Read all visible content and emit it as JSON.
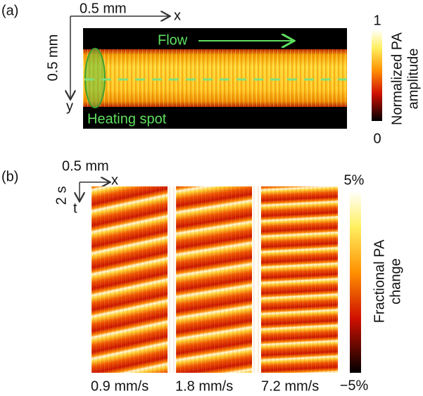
{
  "panel_a": {
    "label": "(a)",
    "scale_x": "0.5 mm",
    "axis_x": "x",
    "scale_y": "0.5 mm",
    "axis_y": "y",
    "flow": "Flow",
    "heating_spot": "Heating spot",
    "colorbar_max": "1",
    "colorbar_min": "0",
    "colorbar_label_line1": "Normalized PA",
    "colorbar_label_line2": "amplitude"
  },
  "panel_b": {
    "label": "(b)",
    "scale_x": "0.5 mm",
    "axis_x": "x",
    "scale_t": "2 s",
    "axis_t": "t",
    "colorbar_max": "5%",
    "colorbar_min": "−5%",
    "colorbar_label_line1": "Fractional PA",
    "colorbar_label_line2": "change",
    "speeds": [
      "0.9 mm/s",
      "1.8 mm/s",
      "7.2 mm/s"
    ]
  }
}
